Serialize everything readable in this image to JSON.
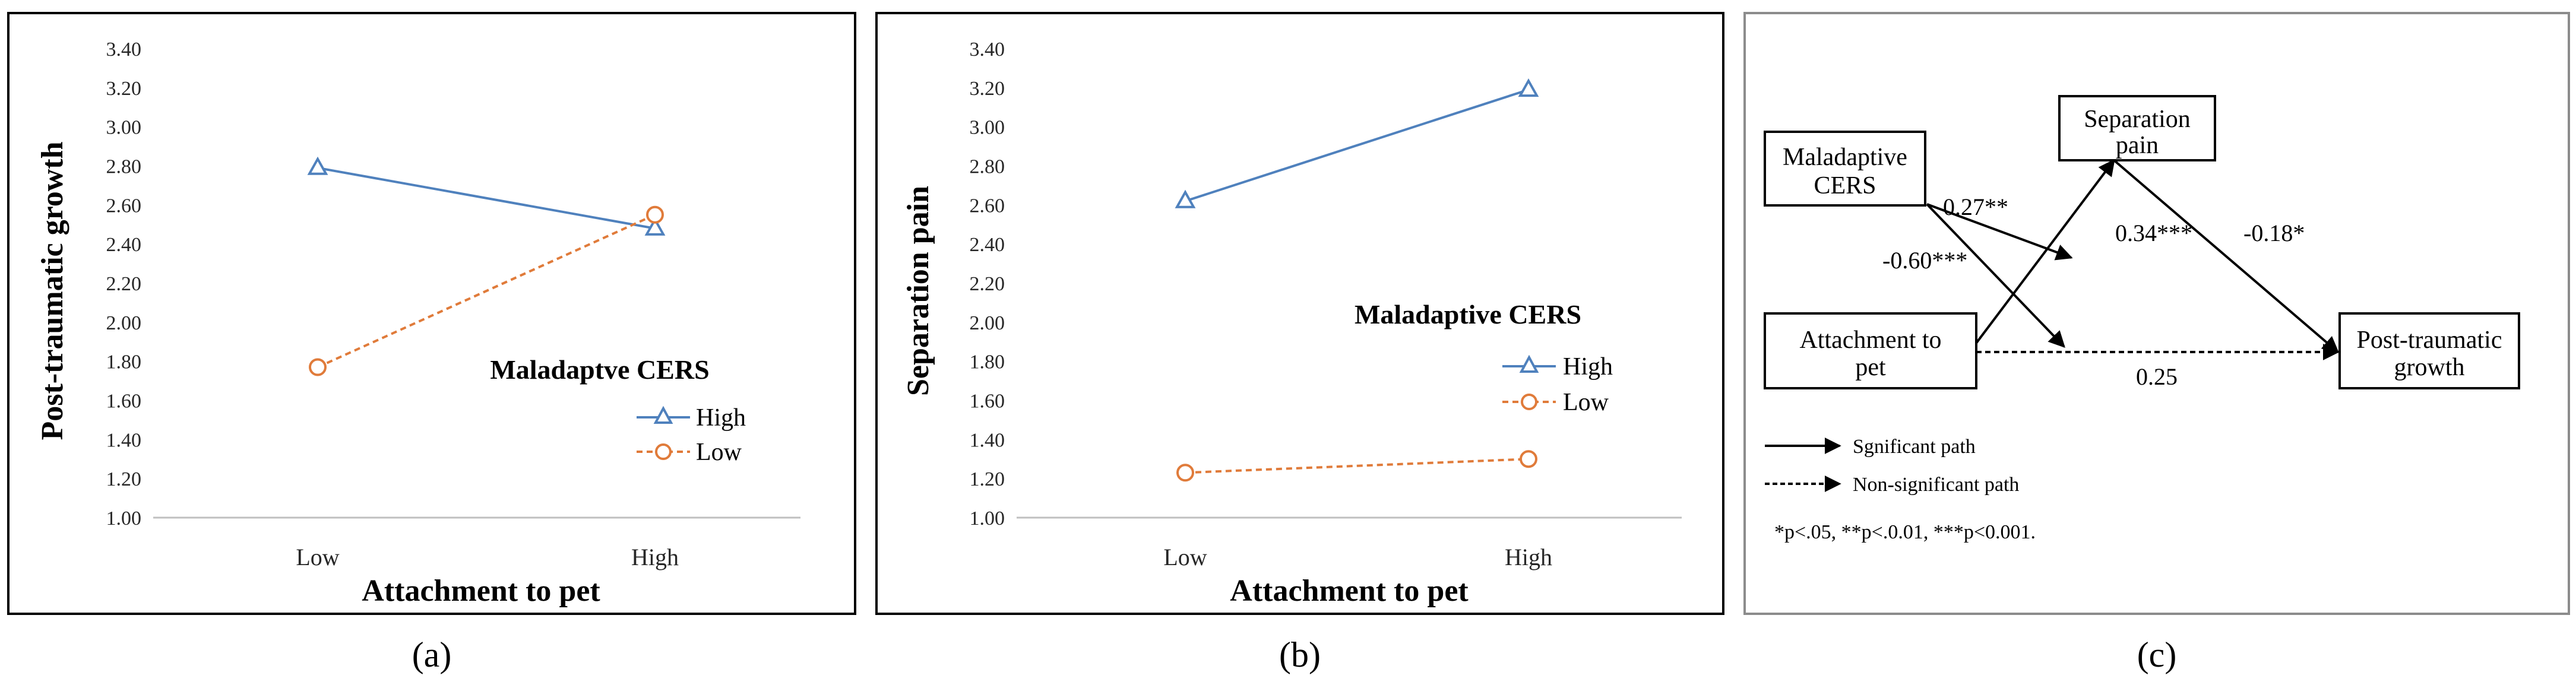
{
  "chart_data": [
    {
      "id": "a",
      "type": "line",
      "caption": "(a)",
      "ylabel": "Post-traumatic growth",
      "xlabel": "Attachment to pet",
      "categories": [
        "Low",
        "High"
      ],
      "ylim": [
        1.0,
        3.4
      ],
      "yticks": [
        "1.00",
        "1.20",
        "1.40",
        "1.60",
        "1.80",
        "2.00",
        "2.20",
        "2.40",
        "2.60",
        "2.80",
        "3.00",
        "3.20",
        "3.40"
      ],
      "legend_title": "Maladaptve CERS",
      "series": [
        {
          "name": "High",
          "values": [
            2.79,
            2.48
          ],
          "color": "#4f81bd",
          "marker": "triangle",
          "dashed": false
        },
        {
          "name": "Low",
          "values": [
            1.77,
            2.55
          ],
          "color": "#e07b3a",
          "marker": "circle",
          "dashed": true
        }
      ]
    },
    {
      "id": "b",
      "type": "line",
      "caption": "(b)",
      "ylabel": "Separation pain",
      "xlabel": "Attachment to pet",
      "categories": [
        "Low",
        "High"
      ],
      "ylim": [
        1.0,
        3.4
      ],
      "yticks": [
        "1.00",
        "1.20",
        "1.40",
        "1.60",
        "1.80",
        "2.00",
        "2.20",
        "2.40",
        "2.60",
        "2.80",
        "3.00",
        "3.20",
        "3.40"
      ],
      "legend_title": "Maladaptive CERS",
      "series": [
        {
          "name": "High",
          "values": [
            2.62,
            3.19
          ],
          "color": "#4f81bd",
          "marker": "triangle",
          "dashed": false
        },
        {
          "name": "Low",
          "values": [
            1.23,
            1.3
          ],
          "color": "#e07b3a",
          "marker": "circle",
          "dashed": true
        }
      ]
    }
  ],
  "diagram": {
    "caption": "(c)",
    "nodes": {
      "cers": [
        "Maladaptive",
        "CERS"
      ],
      "separation": [
        "Separation",
        "pain"
      ],
      "attachment": [
        "Attachment to",
        "pet"
      ],
      "ptg": [
        "Post-traumatic",
        "growth"
      ]
    },
    "coefficients": {
      "cers_interaction": "0.27**",
      "cers_to_ptg": "-0.60***",
      "separation_path": "0.34***",
      "separation_to_ptg": "-0.18*",
      "attachment_to_ptg": "0.25"
    },
    "legend": {
      "significant": "Sgnificant path",
      "nonsignificant": "Non-significant path"
    },
    "note": "*p<.05, **p<.0.01, ***p<0.001."
  },
  "colors": {
    "high": "#4f81bd",
    "low": "#e07b3a",
    "axis": "#bfbfbf"
  }
}
